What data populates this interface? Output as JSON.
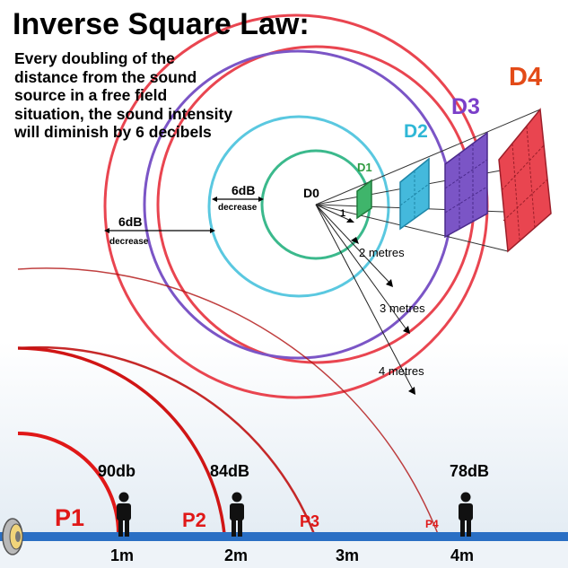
{
  "title": "Inverse Square Law:",
  "description": "Every doubling of the distance from the sound source in a free field situation, the sound intensity will diminish by 6 decibels",
  "colors": {
    "red": "#e94550",
    "purple": "#7b55c6",
    "cyan": "#5ac8e0",
    "green": "#3bb98c",
    "ground": "#2a6fc4",
    "label_red": "#e01818",
    "label_d4": "#e34b18"
  },
  "diagram": {
    "source_label": "D0",
    "planes": [
      {
        "label": "D1",
        "color": "#2f9a3f"
      },
      {
        "label": "D2",
        "color": "#2fb7d6"
      },
      {
        "label": "D3",
        "color": "#7b3fc9"
      },
      {
        "label": "D4",
        "color": "#e34b18"
      }
    ],
    "distances": [
      "1",
      "2 metres",
      "3 metres",
      "4 metres"
    ],
    "decreases": [
      {
        "value": "6dB",
        "note": "decrease"
      },
      {
        "value": "6dB",
        "note": "decrease"
      }
    ]
  },
  "bottom": {
    "positions": [
      {
        "label": "P1",
        "distance": "1m",
        "level": "90db"
      },
      {
        "label": "P2",
        "distance": "2m",
        "level": "84dB"
      },
      {
        "label": "P3",
        "distance": "3m",
        "level": ""
      },
      {
        "label": "P4",
        "distance": "4m",
        "level": "78dB"
      }
    ]
  }
}
